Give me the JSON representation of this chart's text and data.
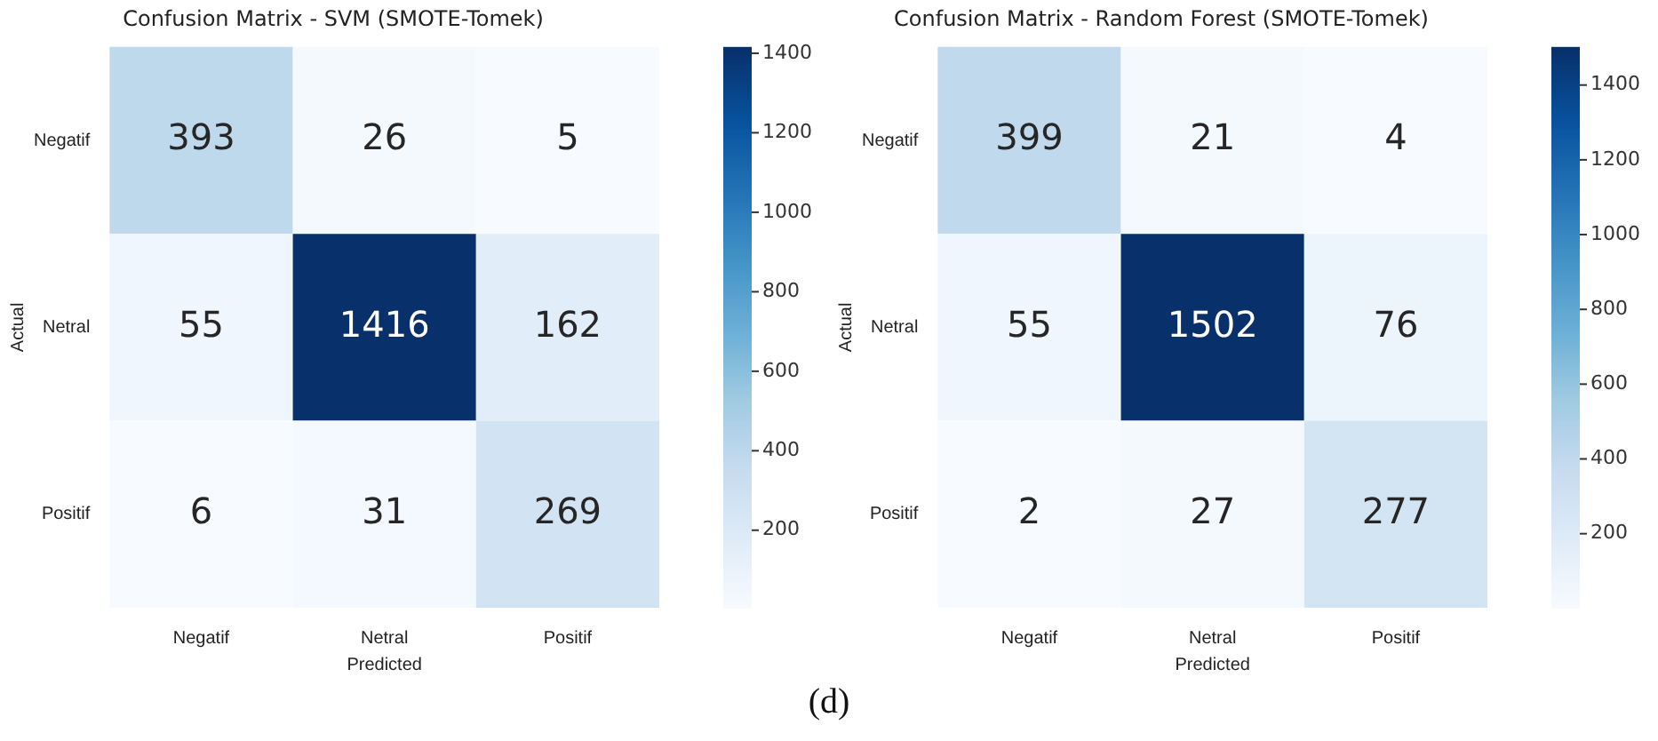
{
  "chart_data": [
    {
      "type": "heatmap",
      "title": "Confusion Matrix - SVM (SMOTE-Tomek)",
      "xlabel": "Predicted",
      "ylabel": "Actual",
      "categories": [
        "Negatif",
        "Netral",
        "Positif"
      ],
      "y_categories": [
        "Negatif",
        "Netral",
        "Positif"
      ],
      "cells": [
        [
          393,
          26,
          5
        ],
        [
          55,
          1416,
          162
        ],
        [
          6,
          31,
          269
        ]
      ],
      "clim": [
        5,
        1416
      ],
      "cticks": [
        200,
        400,
        600,
        800,
        1000,
        1200,
        1400
      ],
      "data_labels": true,
      "annotations": [
        "(d)"
      ]
    },
    {
      "type": "heatmap",
      "title": "Confusion Matrix - Random Forest (SMOTE-Tomek)",
      "xlabel": "Predicted",
      "ylabel": "Actual",
      "categories": [
        "Negatif",
        "Netral",
        "Positif"
      ],
      "y_categories": [
        "Negatif",
        "Netral",
        "Positif"
      ],
      "cells": [
        [
          399,
          21,
          4
        ],
        [
          55,
          1502,
          76
        ],
        [
          2,
          27,
          277
        ]
      ],
      "clim": [
        2,
        1502
      ],
      "cticks": [
        200,
        400,
        600,
        800,
        1000,
        1200,
        1400
      ],
      "data_labels": true
    }
  ]
}
